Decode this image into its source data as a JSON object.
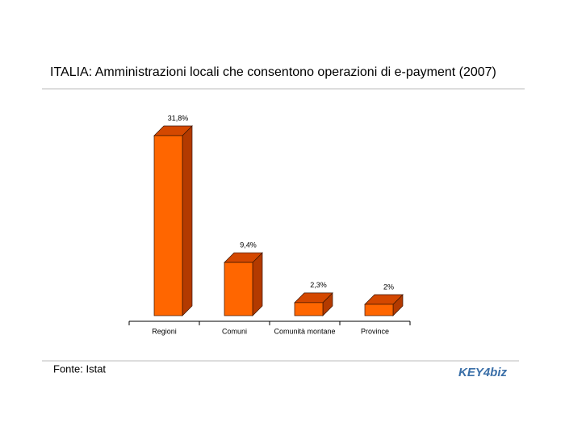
{
  "chart_data": {
    "type": "bar3d",
    "title": "ITALIA: Amministrazioni locali che consentono operazioni di e-payment (2007)",
    "categories": [
      "Regioni",
      "Comuni",
      "Comunità montane",
      "Province"
    ],
    "values": [
      31.8,
      9.4,
      2.3,
      2
    ],
    "value_labels": [
      "31,8%",
      "9,4%",
      "2,3%",
      "2%"
    ],
    "color": "#ff6600",
    "source": "Fonte: Istat",
    "logo": "KEY4biz"
  }
}
